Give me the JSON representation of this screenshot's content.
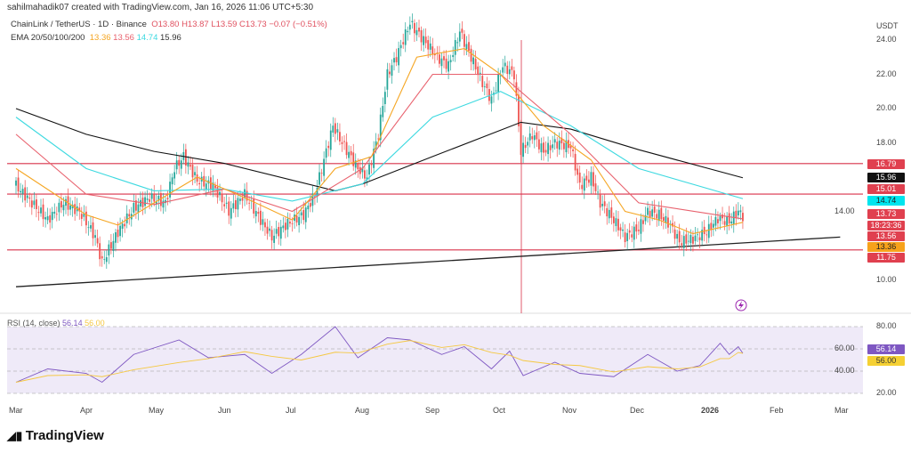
{
  "header": {
    "credit": "sahilmahadik07 created with TradingView.com, Jan 16, 2026 11:06 UTC+5:30",
    "symbol": "ChainLink / TetherUS · 1D · Binance",
    "open": "O13.80",
    "high": "H13.87",
    "low": "L13.59",
    "close": "C13.73",
    "change": "−0.07 (−0.51%)",
    "ema_label": "EMA 20/50/100/200",
    "ema20": "13.36",
    "ema50": "13.56",
    "ema100": "14.74",
    "ema200": "15.96"
  },
  "colors": {
    "ema20": "#f5a623",
    "ema50": "#e8626e",
    "ema100": "#3dd9e0",
    "ema200": "#111111",
    "hline": "#d9324a",
    "up": "#26a69a",
    "down": "#ef5350",
    "rsi": "#7e57c2",
    "rsi_ma": "#f5c842"
  },
  "price_axis": {
    "unit": "USDT",
    "ticks": [
      "24.00",
      "22.00",
      "20.00",
      "18.00",
      "14.00",
      "10.00"
    ],
    "tags": [
      {
        "text": "16.79",
        "color": "#e0404f"
      },
      {
        "text": "15.96",
        "color": "#111111"
      },
      {
        "text": "15.01",
        "color": "#e0404f"
      },
      {
        "text": "14.74",
        "color": "#00e5ee"
      },
      {
        "text": "13.73",
        "color": "#e0404f"
      },
      {
        "text": "18:23:36",
        "color": "#e0404f"
      },
      {
        "text": "13.56",
        "color": "#e0404f"
      },
      {
        "text": "13.36",
        "color": "#f7a21b"
      },
      {
        "text": "11.75",
        "color": "#e0404f"
      }
    ]
  },
  "rsi": {
    "label": "RSI (14, close)",
    "value": "56.14",
    "ma": "56.00",
    "ticks": [
      "80.00",
      "60.00",
      "40.00",
      "20.00"
    ]
  },
  "time_axis": [
    "Mar",
    "Apr",
    "May",
    "Jun",
    "Jul",
    "Aug",
    "Sep",
    "Oct",
    "Nov",
    "Dec",
    "2026",
    "Feb",
    "Mar"
  ],
  "logo": "TradingView",
  "chart_data": {
    "type": "candlestick",
    "title": "ChainLink / TetherUS · 1D · Binance",
    "ylabel": "USDT",
    "ylim": [
      9,
      25
    ],
    "closes": [
      [
        "2025-03-01",
        15.5
      ],
      [
        "2025-03-08",
        14.5
      ],
      [
        "2025-03-15",
        13.5
      ],
      [
        "2025-03-22",
        14.5
      ],
      [
        "2025-03-29",
        14.0
      ],
      [
        "2025-04-05",
        12.5
      ],
      [
        "2025-04-08",
        11.0
      ],
      [
        "2025-04-15",
        12.8
      ],
      [
        "2025-04-22",
        14.2
      ],
      [
        "2025-04-29",
        14.8
      ],
      [
        "2025-05-06",
        14.5
      ],
      [
        "2025-05-10",
        16.5
      ],
      [
        "2025-05-14",
        17.2
      ],
      [
        "2025-05-20",
        15.8
      ],
      [
        "2025-05-27",
        15.5
      ],
      [
        "2025-06-03",
        14.0
      ],
      [
        "2025-06-10",
        15.0
      ],
      [
        "2025-06-17",
        13.5
      ],
      [
        "2025-06-22",
        12.5
      ],
      [
        "2025-06-29",
        13.3
      ],
      [
        "2025-07-06",
        13.8
      ],
      [
        "2025-07-11",
        15.0
      ],
      [
        "2025-07-15",
        17.0
      ],
      [
        "2025-07-19",
        19.0
      ],
      [
        "2025-07-23",
        18.0
      ],
      [
        "2025-07-30",
        16.5
      ],
      [
        "2025-08-03",
        16.0
      ],
      [
        "2025-08-08",
        18.5
      ],
      [
        "2025-08-12",
        22.0
      ],
      [
        "2025-08-16",
        23.0
      ],
      [
        "2025-08-22",
        25.0
      ],
      [
        "2025-08-28",
        24.0
      ],
      [
        "2025-09-03",
        23.0
      ],
      [
        "2025-09-08",
        22.5
      ],
      [
        "2025-09-13",
        24.5
      ],
      [
        "2025-09-18",
        23.0
      ],
      [
        "2025-09-23",
        21.5
      ],
      [
        "2025-09-27",
        20.5
      ],
      [
        "2025-10-02",
        22.5
      ],
      [
        "2025-10-07",
        22.0
      ],
      [
        "2025-10-10",
        17.5
      ],
      [
        "2025-10-15",
        18.5
      ],
      [
        "2025-10-20",
        17.5
      ],
      [
        "2025-10-25",
        18.0
      ],
      [
        "2025-11-01",
        17.8
      ],
      [
        "2025-11-05",
        15.5
      ],
      [
        "2025-11-10",
        16.0
      ],
      [
        "2025-11-14",
        14.5
      ],
      [
        "2025-11-20",
        13.5
      ],
      [
        "2025-11-25",
        12.5
      ],
      [
        "2025-12-01",
        13.0
      ],
      [
        "2025-12-05",
        14.0
      ],
      [
        "2025-12-10",
        13.8
      ],
      [
        "2025-12-15",
        13.2
      ],
      [
        "2025-12-19",
        12.2
      ],
      [
        "2025-12-25",
        12.4
      ],
      [
        "2025-12-31",
        12.8
      ],
      [
        "2026-01-05",
        13.6
      ],
      [
        "2026-01-10",
        13.4
      ],
      [
        "2026-01-14",
        14.0
      ],
      [
        "2026-01-16",
        13.73
      ]
    ],
    "ema20": [
      [
        "2025-03-01",
        16.5
      ],
      [
        "2025-04-01",
        13.8
      ],
      [
        "2025-04-15",
        13.2
      ],
      [
        "2025-05-01",
        14.5
      ],
      [
        "2025-05-20",
        16.0
      ],
      [
        "2025-06-10",
        14.8
      ],
      [
        "2025-07-01",
        13.5
      ],
      [
        "2025-07-20",
        16.5
      ],
      [
        "2025-08-05",
        17.2
      ],
      [
        "2025-08-25",
        23.0
      ],
      [
        "2025-09-15",
        23.5
      ],
      [
        "2025-10-01",
        22.0
      ],
      [
        "2025-10-20",
        19.0
      ],
      [
        "2025-11-10",
        17.0
      ],
      [
        "2025-11-25",
        14.0
      ],
      [
        "2025-12-10",
        13.5
      ],
      [
        "2025-12-25",
        12.7
      ],
      [
        "2026-01-16",
        13.36
      ]
    ],
    "ema50": [
      [
        "2025-03-01",
        18.5
      ],
      [
        "2025-04-01",
        15.0
      ],
      [
        "2025-05-01",
        14.4
      ],
      [
        "2025-06-01",
        15.3
      ],
      [
        "2025-07-01",
        14.0
      ],
      [
        "2025-08-01",
        16.5
      ],
      [
        "2025-09-01",
        22.0
      ],
      [
        "2025-10-01",
        22.0
      ],
      [
        "2025-11-01",
        18.5
      ],
      [
        "2025-12-01",
        14.5
      ],
      [
        "2026-01-16",
        13.56
      ]
    ],
    "ema100": [
      [
        "2025-03-01",
        19.5
      ],
      [
        "2025-04-01",
        16.5
      ],
      [
        "2025-05-01",
        15.2
      ],
      [
        "2025-06-01",
        15.3
      ],
      [
        "2025-07-01",
        14.6
      ],
      [
        "2025-08-01",
        15.6
      ],
      [
        "2025-09-01",
        19.5
      ],
      [
        "2025-10-01",
        21.0
      ],
      [
        "2025-11-01",
        19.0
      ],
      [
        "2025-12-01",
        16.5
      ],
      [
        "2026-01-16",
        14.74
      ]
    ],
    "ema200": [
      [
        "2025-03-01",
        20.0
      ],
      [
        "2025-04-01",
        18.5
      ],
      [
        "2025-05-01",
        17.5
      ],
      [
        "2025-06-01",
        16.8
      ],
      [
        "2025-07-20",
        15.2
      ],
      [
        "2025-08-01",
        15.6
      ],
      [
        "2025-09-01",
        17.2
      ],
      [
        "2025-10-10",
        19.2
      ],
      [
        "2025-11-01",
        18.8
      ],
      [
        "2025-12-01",
        17.6
      ],
      [
        "2026-01-16",
        15.96
      ]
    ],
    "horizontal_levels": [
      16.79,
      15.01,
      11.75
    ],
    "trendline": [
      [
        "2025-03-01",
        9.6
      ],
      [
        "2026-02-28",
        12.5
      ]
    ],
    "rsi": [
      [
        "2025-03-01",
        30
      ],
      [
        "2025-03-15",
        42
      ],
      [
        "2025-04-01",
        38
      ],
      [
        "2025-04-08",
        30
      ],
      [
        "2025-04-22",
        55
      ],
      [
        "2025-05-12",
        68
      ],
      [
        "2025-05-25",
        52
      ],
      [
        "2025-06-10",
        55
      ],
      [
        "2025-06-22",
        38
      ],
      [
        "2025-07-05",
        55
      ],
      [
        "2025-07-20",
        80
      ],
      [
        "2025-07-30",
        52
      ],
      [
        "2025-08-12",
        70
      ],
      [
        "2025-08-22",
        68
      ],
      [
        "2025-09-05",
        55
      ],
      [
        "2025-09-15",
        62
      ],
      [
        "2025-09-27",
        42
      ],
      [
        "2025-10-05",
        58
      ],
      [
        "2025-10-11",
        36
      ],
      [
        "2025-10-25",
        48
      ],
      [
        "2025-11-05",
        38
      ],
      [
        "2025-11-20",
        35
      ],
      [
        "2025-12-05",
        55
      ],
      [
        "2025-12-18",
        40
      ],
      [
        "2025-12-28",
        45
      ],
      [
        "2026-01-06",
        65
      ],
      [
        "2026-01-10",
        55
      ],
      [
        "2026-01-14",
        62
      ],
      [
        "2026-01-16",
        56.14
      ]
    ],
    "rsi_ylim": [
      20,
      80
    ]
  }
}
